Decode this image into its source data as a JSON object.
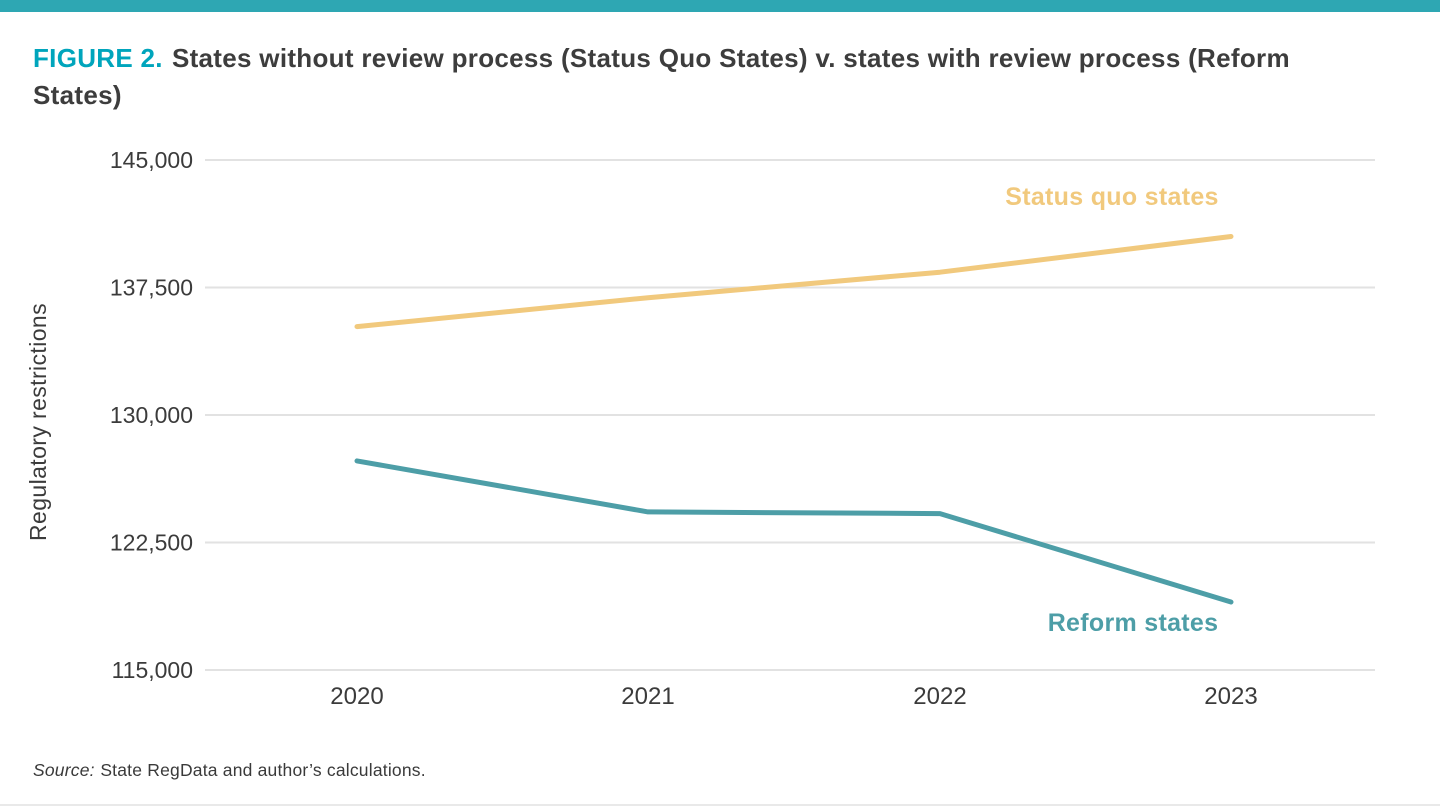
{
  "page": {
    "figure_label": "FIGURE 2.",
    "figure_title": "States without review process (Status Quo States) v. states with review process (Reform States)",
    "source_label": "Source:",
    "source_text": "State RegData and author’s calculations.",
    "accent_color": "#00a5bc",
    "top_bar_color": "#2ea7b3"
  },
  "chart_data": {
    "type": "line",
    "title": "States without review process (Status Quo States) v. states with review process (Reform States)",
    "categories": [
      "2020",
      "2021",
      "2022",
      "2023"
    ],
    "series": [
      {
        "name": "Status quo states",
        "label": "Status quo states",
        "color": "#f1c97d",
        "values": [
          135200,
          136900,
          138400,
          140500
        ]
      },
      {
        "name": "Reform states",
        "label": "Reform states",
        "color": "#4d9ea7",
        "values": [
          127300,
          124300,
          124200,
          119000
        ]
      }
    ],
    "xlabel": "",
    "ylabel": "Regulatory restrictions",
    "ylim": [
      115000,
      145000
    ],
    "yticks": [
      145000,
      137500,
      130000,
      122500,
      115000
    ],
    "grid": "horizontal",
    "grid_color": "#e2e2e2",
    "tick_color": "#3b3b3b",
    "legend_position": "inline-annotations"
  }
}
